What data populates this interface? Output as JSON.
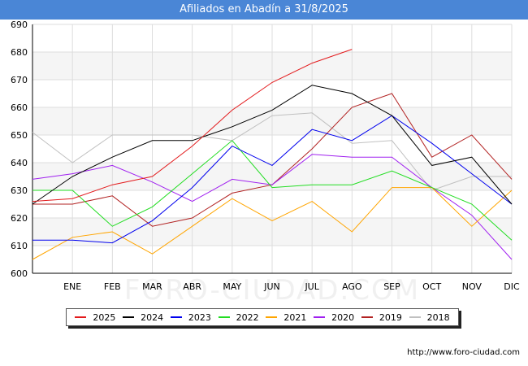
{
  "title": "Afiliados en Abadín a 31/8/2025",
  "source": "http://www.foro-ciudad.com",
  "watermark": "FORO-CIUDAD.COM",
  "chart_data": {
    "type": "line",
    "title": "Afiliados en Abadín a 31/8/2025",
    "xlabel": "",
    "ylabel": "",
    "x_ticks": [
      "ENE",
      "FEB",
      "MAR",
      "ABR",
      "MAY",
      "JUN",
      "JUL",
      "AGO",
      "SEP",
      "OCT",
      "NOV",
      "DIC"
    ],
    "y_ticks": [
      600,
      610,
      620,
      630,
      640,
      650,
      660,
      670,
      680,
      690
    ],
    "ylim": [
      600,
      690
    ],
    "x_positions": [
      0,
      1,
      2,
      3,
      4,
      5,
      6,
      7,
      8,
      9,
      10,
      11,
      12
    ],
    "grid": true,
    "legend_position": "bottom",
    "series": [
      {
        "name": "2025",
        "color": "#e31a1c",
        "values": [
          626,
          627,
          632,
          635,
          646,
          659,
          669,
          676,
          681
        ]
      },
      {
        "name": "2024",
        "color": "#000000",
        "values": [
          625,
          635,
          642,
          648,
          648,
          653,
          659,
          668,
          665,
          657,
          639,
          642,
          625
        ]
      },
      {
        "name": "2023",
        "color": "#0000ee",
        "values": [
          612,
          612,
          611,
          619,
          631,
          646,
          639,
          652,
          648,
          657,
          647,
          636,
          625
        ]
      },
      {
        "name": "2022",
        "color": "#22dd22",
        "values": [
          630,
          630,
          617,
          624,
          636,
          648,
          631,
          632,
          632,
          637,
          631,
          625,
          612
        ]
      },
      {
        "name": "2021",
        "color": "#ffa500",
        "values": [
          605,
          613,
          615,
          607,
          617,
          627,
          619,
          626,
          615,
          631,
          631,
          617,
          630
        ]
      },
      {
        "name": "2020",
        "color": "#a020f0",
        "values": [
          634,
          636,
          639,
          633,
          626,
          634,
          632,
          643,
          642,
          642,
          631,
          621,
          605
        ]
      },
      {
        "name": "2019",
        "color": "#b22222",
        "values": [
          625,
          625,
          628,
          617,
          620,
          629,
          632,
          645,
          660,
          665,
          642,
          650,
          634
        ]
      },
      {
        "name": "2018",
        "color": "#c0c0c0",
        "values": [
          651,
          640,
          650,
          650,
          650,
          648,
          657,
          658,
          647,
          648,
          630,
          635,
          635
        ]
      }
    ]
  }
}
